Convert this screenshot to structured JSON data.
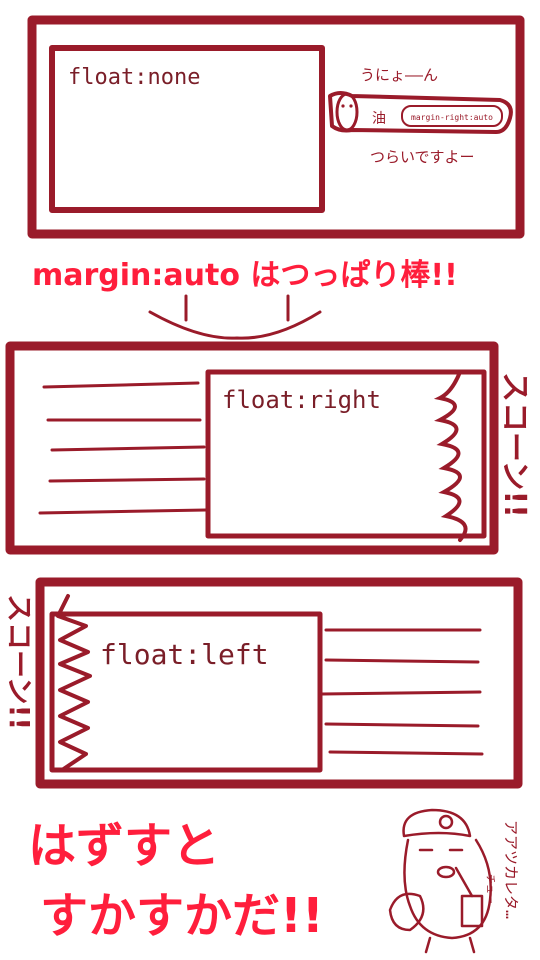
{
  "colors": {
    "maroon": "#9a1b2a",
    "red": "#ff1e3c",
    "ink": "#7a1e28"
  },
  "panel1": {
    "label": "float:none",
    "margin_label": "margin-right:auto",
    "oil_label": "油",
    "stretch_text": "うにょ——ん",
    "painful_text": "つらいですよー"
  },
  "caption_margin": "margin:auto はつっぱり棒!!",
  "panel2": {
    "label": "float:right",
    "sfx": "スコーン!!"
  },
  "panel3": {
    "label": "float:left",
    "sfx": "スコーン!!"
  },
  "bottom_caption": {
    "line1": "はずすと",
    "line2": "すかすかだ!!"
  },
  "character": {
    "sip": "チュー",
    "thought": "アアツカレタ…"
  }
}
